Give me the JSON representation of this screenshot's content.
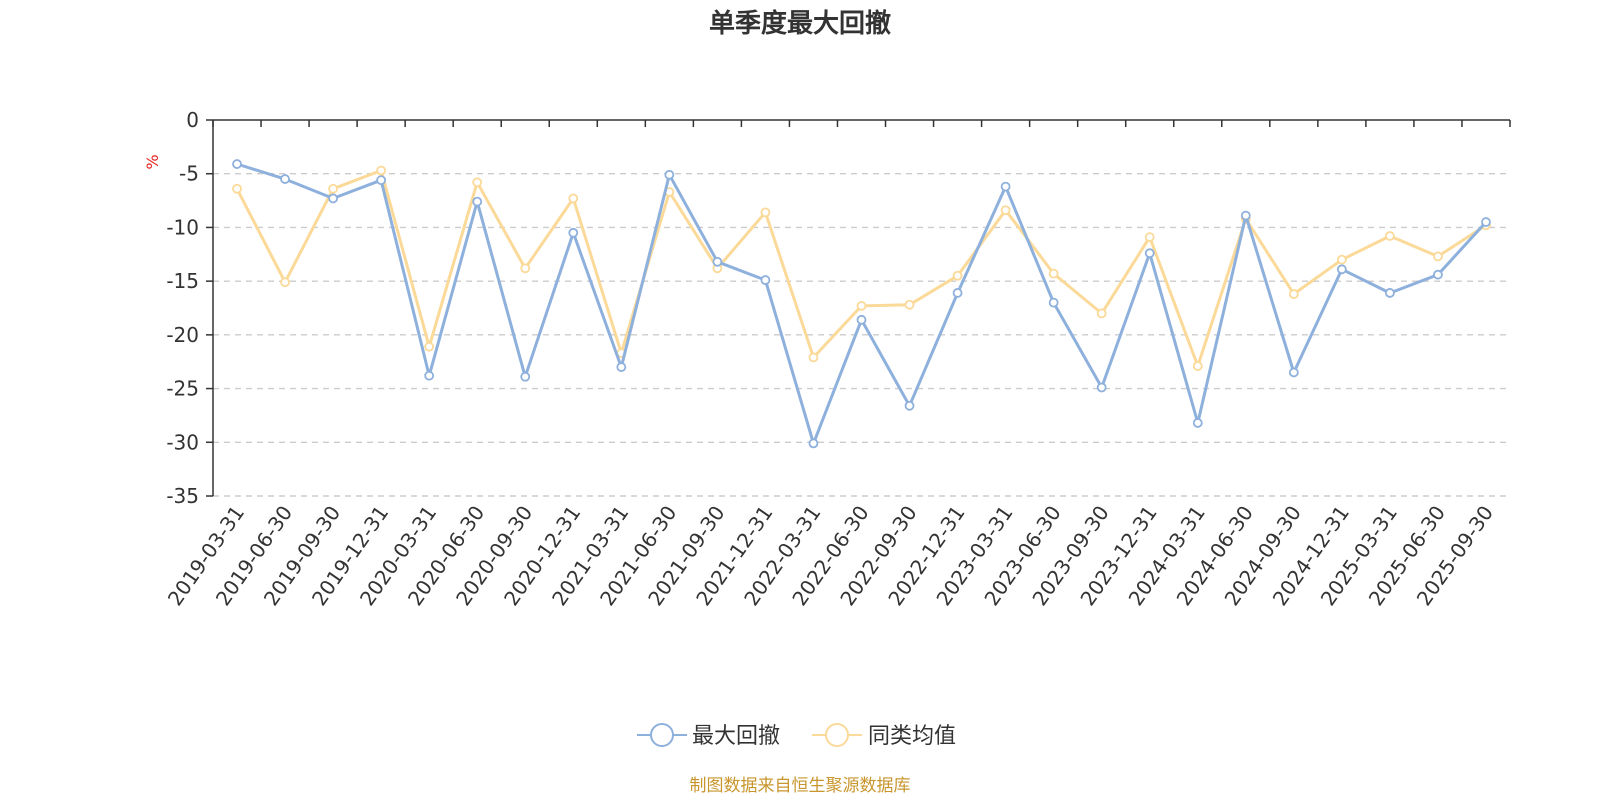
{
  "chart_data": {
    "type": "line",
    "title": "单季度最大回撤",
    "ylabel": "%",
    "ylim": [
      -35,
      0
    ],
    "yticks": [
      0,
      -5,
      -10,
      -15,
      -20,
      -25,
      -30,
      -35
    ],
    "grid": true,
    "legend_position": "bottom",
    "categories": [
      "2019-03-31",
      "2019-06-30",
      "2019-09-30",
      "2019-12-31",
      "2020-03-31",
      "2020-06-30",
      "2020-09-30",
      "2020-12-31",
      "2021-03-31",
      "2021-06-30",
      "2021-09-30",
      "2021-12-31",
      "2022-03-31",
      "2022-06-30",
      "2022-09-30",
      "2022-12-31",
      "2023-03-31",
      "2023-06-30",
      "2023-09-30",
      "2023-12-31",
      "2024-03-31",
      "2024-06-30",
      "2024-09-30",
      "2024-12-31",
      "2025-03-31",
      "2025-06-30",
      "2025-09-30"
    ],
    "series": [
      {
        "name": "最大回撤",
        "color": "#8eb0dc",
        "values": [
          -4.1,
          -5.5,
          -7.3,
          -5.6,
          -23.8,
          -7.6,
          -23.9,
          -10.5,
          -23.0,
          -5.1,
          -13.2,
          -14.9,
          -30.1,
          -18.6,
          -26.6,
          -16.1,
          -6.2,
          -17.0,
          -24.9,
          -12.4,
          -28.2,
          -8.9,
          -23.5,
          -13.9,
          -16.1,
          -14.4,
          -9.5
        ]
      },
      {
        "name": "同类均值",
        "color": "#fbd998",
        "values": [
          -6.4,
          -15.1,
          -6.4,
          -4.7,
          -21.1,
          -5.8,
          -13.8,
          -7.3,
          -21.7,
          -6.7,
          -13.8,
          -8.6,
          -22.1,
          -17.3,
          -17.2,
          -14.5,
          -8.4,
          -14.3,
          -18.0,
          -10.9,
          -22.9,
          -9.2,
          -16.2,
          -13.0,
          -10.8,
          -12.7,
          -9.8
        ]
      }
    ],
    "source": "制图数据来自恒生聚源数据库",
    "colors": {
      "axis": "#333333",
      "grid": "#cccccc",
      "unit": "#e8231e",
      "source": "#c8962d"
    }
  }
}
